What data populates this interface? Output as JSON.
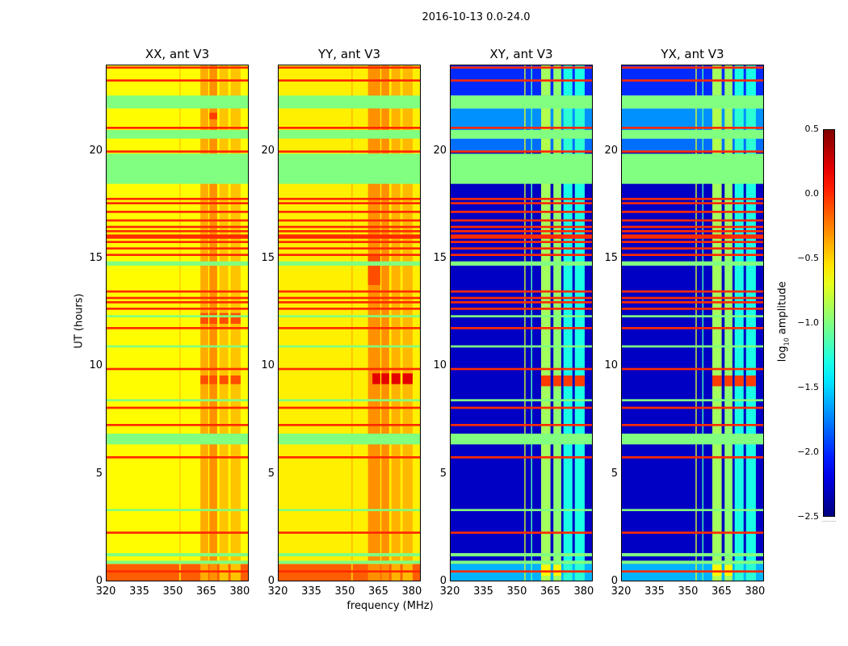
{
  "chart_data": {
    "type": "heatmap",
    "title": "2016-10-13 0.0-24.0",
    "xlabel": "frequency (MHz)",
    "ylabel": "UT (hours)",
    "xlim": [
      320,
      384
    ],
    "ylim": [
      0,
      24
    ],
    "xticks": [
      "320",
      "335",
      "350",
      "365",
      "380"
    ],
    "yticks": [
      "0",
      "5",
      "10",
      "15",
      "20"
    ],
    "colorbar": {
      "label_main": "log",
      "label_sub": "10",
      "label_rest": " amplitude",
      "colormap": "jet",
      "range": [
        -2.5,
        0.5
      ],
      "ticks": [
        "0.5",
        "0.0",
        "−0.5",
        "−1.0",
        "−1.5",
        "−2.0",
        "−2.5"
      ]
    },
    "flagged_bands": [
      [
        22.0,
        22.6
      ],
      [
        20.6,
        21.0
      ],
      [
        18.5,
        19.9
      ],
      [
        14.7,
        14.9
      ],
      [
        6.4,
        6.9
      ],
      [
        1.2,
        1.35
      ],
      [
        0.85,
        1.0
      ],
      [
        10.9,
        11.0
      ],
      [
        8.4,
        8.5
      ],
      [
        3.3,
        3.4
      ],
      [
        12.3,
        12.4
      ]
    ],
    "rfi_lines": [
      23.9,
      23.3,
      21.1,
      20.0,
      17.8,
      17.6,
      17.2,
      16.8,
      16.5,
      16.3,
      16.1,
      16.0,
      15.8,
      15.5,
      15.2,
      13.5,
      13.2,
      13.0,
      12.7,
      11.8,
      9.9,
      8.1,
      7.3,
      5.8,
      2.3,
      0.5
    ],
    "panels": [
      {
        "title": "XX, ant V3",
        "bands": [
          [
            0,
            0.85,
            -0.15
          ],
          [
            0.85,
            24,
            -0.62
          ]
        ],
        "stripes": [
          [
            352.5,
            353.2,
            -0.5
          ],
          [
            362,
            365.5,
            -0.38
          ],
          [
            366,
            369.5,
            -0.3
          ],
          [
            370.5,
            374.5,
            -0.45
          ],
          [
            375.5,
            380,
            -0.45
          ]
        ],
        "hotspots": [
          [
            9.2,
            9.6,
            362,
            380,
            -0.1
          ],
          [
            12,
            12.5,
            362,
            380,
            -0.1
          ],
          [
            21.5,
            21.8,
            366,
            369.5,
            -0.05
          ]
        ]
      },
      {
        "title": "YY, ant V3",
        "bands": [
          [
            0,
            0.85,
            -0.15
          ],
          [
            0.85,
            24,
            -0.58
          ]
        ],
        "stripes": [
          [
            352.5,
            353.2,
            -0.45
          ],
          [
            360,
            365.5,
            -0.3
          ],
          [
            366,
            369.5,
            -0.3
          ],
          [
            370.5,
            374.5,
            -0.4
          ],
          [
            375.5,
            380,
            -0.42
          ]
        ],
        "hotspots": [
          [
            9.2,
            9.7,
            362,
            380,
            0.2
          ],
          [
            13.8,
            15.2,
            360,
            365.5,
            -0.1
          ]
        ]
      },
      {
        "title": "XY, ant V3",
        "bands": [
          [
            0,
            0.85,
            -1.6
          ],
          [
            0.85,
            20.0,
            -2.3
          ],
          [
            20.0,
            20.6,
            -1.8
          ],
          [
            21.0,
            22.0,
            -1.7
          ],
          [
            22.6,
            24,
            -2.0
          ]
        ],
        "stripes": [
          [
            353,
            353.5,
            -0.7
          ],
          [
            356,
            356.5,
            -1.1
          ],
          [
            360.5,
            364.7,
            -0.85
          ],
          [
            366,
            369.5,
            -0.9
          ],
          [
            370.5,
            374.5,
            -1.25
          ],
          [
            375.6,
            380,
            -1.25
          ]
        ],
        "hotspots": [
          [
            9.1,
            9.6,
            360.5,
            380,
            -0.05
          ],
          [
            0.3,
            0.8,
            360.5,
            369.5,
            -0.6
          ]
        ]
      },
      {
        "title": "YX, ant V3",
        "bands": [
          [
            0,
            0.85,
            -1.6
          ],
          [
            0.85,
            20.0,
            -2.3
          ],
          [
            20.0,
            20.6,
            -1.8
          ],
          [
            21.0,
            22.0,
            -1.7
          ],
          [
            22.6,
            24,
            -2.0
          ]
        ],
        "stripes": [
          [
            353,
            353.5,
            -0.7
          ],
          [
            356,
            356.5,
            -1.1
          ],
          [
            360.5,
            364.7,
            -0.85
          ],
          [
            366,
            369.5,
            -0.9
          ],
          [
            370.5,
            374.5,
            -1.25
          ],
          [
            375.6,
            380,
            -1.25
          ]
        ],
        "hotspots": [
          [
            9.1,
            9.6,
            360.5,
            380,
            -0.05
          ],
          [
            0.3,
            0.8,
            360.5,
            369.5,
            -0.6
          ]
        ]
      }
    ]
  }
}
